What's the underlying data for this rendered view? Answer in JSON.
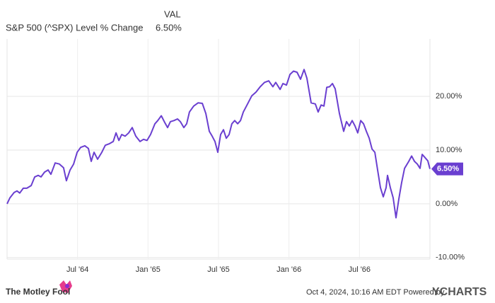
{
  "chart_data": {
    "type": "line",
    "legend_header": "VAL",
    "x": [
      1964.0,
      1964.02,
      1964.05,
      1964.07,
      1964.09,
      1964.115,
      1964.14,
      1964.171,
      1964.196,
      1964.221,
      1964.241,
      1964.266,
      1964.291,
      1964.311,
      1964.341,
      1964.371,
      1964.401,
      1964.421,
      1964.447,
      1964.472,
      1964.497,
      1964.522,
      1964.552,
      1964.577,
      1964.597,
      1964.617,
      1964.642,
      1964.672,
      1964.697,
      1964.727,
      1964.753,
      1964.773,
      1964.793,
      1964.813,
      1964.838,
      1964.863,
      1964.888,
      1964.913,
      1964.943,
      1964.968,
      1964.993,
      1965.018,
      1965.049,
      1965.069,
      1965.094,
      1965.119,
      1965.139,
      1965.159,
      1965.184,
      1965.209,
      1965.229,
      1965.254,
      1965.274,
      1965.294,
      1965.324,
      1965.355,
      1965.385,
      1965.41,
      1965.435,
      1965.455,
      1965.475,
      1965.495,
      1965.515,
      1965.535,
      1965.555,
      1965.575,
      1965.595,
      1965.615,
      1965.636,
      1965.656,
      1965.676,
      1965.706,
      1965.736,
      1965.766,
      1965.796,
      1965.826,
      1965.856,
      1965.886,
      1965.906,
      1965.937,
      1965.957,
      1965.982,
      1966.007,
      1966.032,
      1966.057,
      1966.082,
      1966.107,
      1966.127,
      1966.157,
      1966.187,
      1966.207,
      1966.228,
      1966.248,
      1966.268,
      1966.288,
      1966.308,
      1966.328,
      1966.358,
      1966.388,
      1966.408,
      1966.428,
      1966.448,
      1966.468,
      1966.488,
      1966.509,
      1966.529,
      1966.549,
      1966.569,
      1966.589,
      1966.609,
      1966.629,
      1966.649,
      1966.669,
      1966.689,
      1966.699,
      1966.719,
      1966.739,
      1966.759,
      1966.779,
      1966.799,
      1966.82,
      1966.85,
      1966.87,
      1966.89,
      1966.91,
      1966.93,
      1966.945,
      1966.965,
      1966.985,
      1967.0
    ],
    "series": [
      {
        "name": "S&P 500 (^SPX) Level % Change",
        "color": "#6a3fd0",
        "values": [
          0.0,
          1.1,
          2.1,
          2.4,
          2.0,
          2.9,
          2.9,
          3.4,
          5.0,
          5.3,
          5.0,
          5.9,
          6.3,
          5.5,
          7.6,
          7.4,
          6.7,
          4.3,
          6.3,
          7.4,
          9.6,
          10.5,
          10.8,
          10.3,
          7.9,
          9.6,
          8.3,
          9.6,
          10.9,
          11.2,
          11.6,
          13.2,
          11.8,
          12.9,
          12.6,
          13.2,
          14.2,
          12.6,
          11.6,
          12.0,
          11.8,
          12.9,
          14.9,
          15.5,
          16.4,
          15.1,
          14.2,
          15.3,
          15.5,
          15.8,
          15.3,
          14.2,
          14.9,
          17.1,
          18.2,
          18.8,
          18.7,
          16.8,
          13.5,
          12.6,
          11.6,
          9.6,
          12.9,
          13.8,
          12.2,
          12.9,
          14.9,
          15.5,
          14.9,
          15.5,
          17.1,
          18.6,
          20.1,
          20.8,
          21.8,
          22.6,
          22.9,
          21.8,
          22.6,
          21.3,
          22.4,
          22.1,
          24.1,
          24.7,
          24.5,
          23.2,
          25.0,
          23.4,
          18.8,
          18.6,
          17.1,
          18.4,
          18.2,
          21.7,
          21.8,
          22.4,
          21.4,
          16.8,
          13.5,
          15.3,
          14.5,
          15.5,
          14.5,
          13.2,
          15.5,
          14.9,
          13.5,
          12.2,
          10.2,
          9.6,
          6.3,
          3.0,
          1.3,
          3.0,
          5.3,
          3.0,
          1.1,
          -2.6,
          0.8,
          3.9,
          6.6,
          7.9,
          8.9,
          7.9,
          7.4,
          6.6,
          9.2,
          8.6,
          8.0,
          6.5
        ],
        "last_value_label": "6.50%"
      }
    ],
    "xlim": [
      1964.0,
      1967.0
    ],
    "xticks": [
      {
        "value": 1964.5,
        "label": "Jul '64"
      },
      {
        "value": 1965.0,
        "label": "Jan '65"
      },
      {
        "value": 1965.5,
        "label": "Jul '65"
      },
      {
        "value": 1966.0,
        "label": "Jan '66"
      },
      {
        "value": 1966.5,
        "label": "Jul '66"
      }
    ],
    "ylim": [
      -10.3,
      30.7
    ],
    "yticks": [
      {
        "value": -10,
        "label": "-10.00%"
      },
      {
        "value": 0,
        "label": "0.00%"
      },
      {
        "value": 10,
        "label": "10.00%"
      },
      {
        "value": 20,
        "label": "20.00%"
      }
    ],
    "grid": true
  },
  "footer": {
    "brand": "The Motley Fool",
    "timestamp": "Oct 4, 2024, 10:16 AM EDT Powered by",
    "provider": "YCHARTS"
  }
}
